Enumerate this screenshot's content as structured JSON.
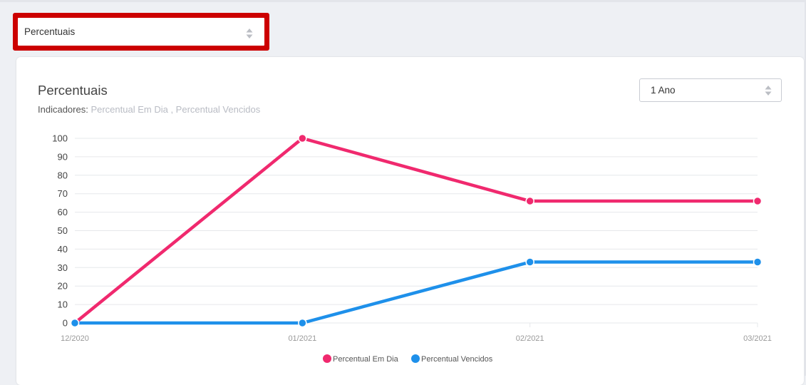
{
  "top_select": {
    "value": "Percentuais"
  },
  "card": {
    "title": "Percentuais",
    "indicators_label": "Indicadores:",
    "indicators_value": "Percentual Em Dia , Percentual Vencidos",
    "period_select": {
      "value": "1 Ano"
    }
  },
  "colors": {
    "series_em_dia": "#f0296e",
    "series_vencidos": "#1e90ea"
  },
  "chart_data": {
    "type": "line",
    "x": [
      "12/2020",
      "01/2021",
      "02/2021",
      "03/2021"
    ],
    "ylim": [
      0,
      100
    ],
    "y_ticks": [
      "0",
      "10",
      "20",
      "30",
      "40",
      "50",
      "60",
      "70",
      "80",
      "90",
      "100"
    ],
    "grid": true,
    "legend_position": "bottom-center",
    "series": [
      {
        "name": "Percentual Em Dia",
        "values": [
          0,
          100,
          66,
          66
        ]
      },
      {
        "name": "Percentual Vencidos",
        "values": [
          0,
          0,
          33,
          33
        ]
      }
    ]
  }
}
